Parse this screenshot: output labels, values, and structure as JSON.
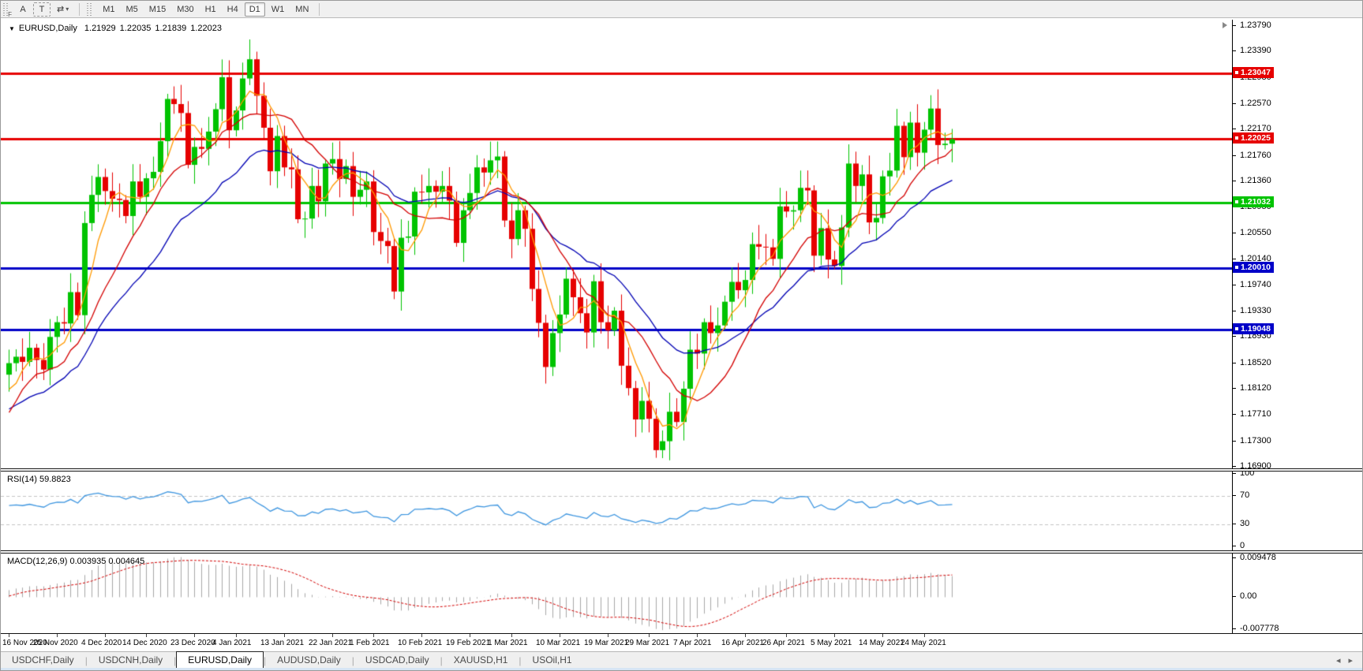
{
  "toolbar": {
    "grip_letter": "F",
    "buttons": [
      {
        "name": "cursor-button",
        "label": "A"
      },
      {
        "name": "text-button",
        "label": "T",
        "boxed": true
      }
    ],
    "symbols_icon": "⇄",
    "dropdown_caret": "▾",
    "timeframes": [
      "M1",
      "M5",
      "M15",
      "M30",
      "H1",
      "H4",
      "D1",
      "W1",
      "MN"
    ],
    "active_timeframe": "D1"
  },
  "chart_header": {
    "dropdown_icon": "▼",
    "symbol_label": "EURUSD,Daily",
    "open": "1.21929",
    "high": "1.22035",
    "low": "1.21839",
    "close": "1.22023"
  },
  "price_axis": {
    "ticks": [
      "1.23790",
      "1.23390",
      "1.22980",
      "1.22570",
      "1.22170",
      "1.21760",
      "1.21360",
      "1.20950",
      "1.20550",
      "1.20140",
      "1.19740",
      "1.19330",
      "1.18930",
      "1.18520",
      "1.18120",
      "1.17710",
      "1.17300",
      "1.16900"
    ]
  },
  "rsi_panel": {
    "label": "RSI(14) 59.8823",
    "ticks": [
      "100",
      "70",
      "30",
      "0"
    ],
    "dashed_levels": [
      70,
      30
    ]
  },
  "macd_panel": {
    "label": "MACD(12,26,9) 0.003935 0.004645",
    "ticks": [
      "0.009478",
      "0.00",
      "-0.007778"
    ]
  },
  "date_axis": {
    "ticks": [
      {
        "label": "16 Nov 2020",
        "index": 0
      },
      {
        "label": "25 Nov 2020",
        "index": 7
      },
      {
        "label": "4 Dec 2020",
        "index": 14
      },
      {
        "label": "14 Dec 2020",
        "index": 20
      },
      {
        "label": "23 Dec 2020",
        "index": 27
      },
      {
        "label": "4 Jan 2021",
        "index": 33
      },
      {
        "label": "13 Jan 2021",
        "index": 40
      },
      {
        "label": "22 Jan 2021",
        "index": 47
      },
      {
        "label": "1 Feb 2021",
        "index": 53
      },
      {
        "label": "10 Feb 2021",
        "index": 60
      },
      {
        "label": "19 Feb 2021",
        "index": 67
      },
      {
        "label": "1 Mar 2021",
        "index": 73
      },
      {
        "label": "10 Mar 2021",
        "index": 80
      },
      {
        "label": "19 Mar 2021",
        "index": 87
      },
      {
        "label": "29 Mar 2021",
        "index": 93
      },
      {
        "label": "7 Apr 2021",
        "index": 100
      },
      {
        "label": "16 Apr 2021",
        "index": 107
      },
      {
        "label": "26 Apr 2021",
        "index": 113
      },
      {
        "label": "5 May 2021",
        "index": 120
      },
      {
        "label": "14 May 2021",
        "index": 127
      },
      {
        "label": "24 May 2021",
        "index": 133
      }
    ]
  },
  "tabs": {
    "items": [
      "USDCHF,Daily",
      "USDCNH,Daily",
      "EURUSD,Daily",
      "AUDUSD,Daily",
      "USDCAD,Daily",
      "XAUUSD,H1",
      "USOil,H1"
    ],
    "active": "EURUSD,Daily",
    "scroll_left": "◂",
    "scroll_right": "▸"
  },
  "colors": {
    "bull": "#00C300",
    "bear": "#E60000",
    "level_red": "#E60000",
    "level_green": "#00C300",
    "level_blue": "#0000C8",
    "ma_fast": "#FF9900",
    "ma_mid": "#D40000",
    "ma_slow": "#0000B4",
    "rsi_line": "#3E96E0",
    "macd_hist": "#A8A8A8",
    "macd_signal": "#D40000",
    "tag_text": "#FFFFFF"
  },
  "chart_data": {
    "type": "candlestick",
    "symbol": "EURUSD",
    "timeframe": "Daily",
    "title": "EURUSD,Daily 1.21929 1.22035 1.21839 1.22023",
    "current_bar": {
      "open": 1.21929,
      "high": 1.22035,
      "low": 1.21839,
      "close": 1.22023
    },
    "x_range": [
      "16 Nov 2020",
      "28 May 2021"
    ],
    "y_range": [
      1.169,
      1.2379
    ],
    "warmup_closes": [
      1.1772,
      1.181,
      1.1749,
      1.1748,
      1.1671,
      1.1647,
      1.1641,
      1.1718,
      1.1723,
      1.1813,
      1.1826,
      1.1877,
      1.1814,
      1.1752,
      1.1803,
      1.1834
    ],
    "closes": [
      1.1852,
      1.1862,
      1.1854,
      1.1876,
      1.1857,
      1.1842,
      1.1893,
      1.1916,
      1.1914,
      1.1963,
      1.1927,
      1.2071,
      1.2115,
      1.2143,
      1.2121,
      1.2109,
      1.2107,
      1.2082,
      1.2136,
      1.2112,
      1.2141,
      1.2151,
      1.2199,
      1.2265,
      1.2257,
      1.2243,
      1.2162,
      1.219,
      1.2187,
      1.2214,
      1.2249,
      1.2299,
      1.2216,
      1.2247,
      1.2297,
      1.2327,
      1.227,
      1.222,
      1.2152,
      1.2207,
      1.2158,
      1.2155,
      1.2077,
      1.2078,
      1.2129,
      1.2105,
      1.2164,
      1.2171,
      1.214,
      1.216,
      1.2112,
      1.2123,
      1.2136,
      1.2057,
      1.2043,
      1.2035,
      1.1964,
      1.2048,
      1.205,
      1.212,
      1.2119,
      1.2129,
      1.212,
      1.2129,
      1.2106,
      1.204,
      1.2091,
      1.2118,
      1.2158,
      1.215,
      1.2169,
      1.2175,
      1.2075,
      1.2046,
      1.2091,
      1.2062,
      1.1968,
      1.1915,
      1.1846,
      1.1899,
      1.1928,
      1.1984,
      1.1955,
      1.193,
      1.19,
      1.198,
      1.1916,
      1.1903,
      1.1934,
      1.1848,
      1.1813,
      1.1764,
      1.1793,
      1.1765,
      1.1716,
      1.173,
      1.1776,
      1.176,
      1.1812,
      1.1873,
      1.1867,
      1.1916,
      1.1899,
      1.1911,
      1.1948,
      1.1979,
      1.1966,
      1.1982,
      1.2038,
      1.2034,
      1.2033,
      1.2015,
      1.2097,
      1.2089,
      1.2091,
      1.2126,
      1.2122,
      1.202,
      1.2063,
      1.2014,
      1.2004,
      1.2064,
      1.2164,
      1.2129,
      1.2147,
      1.2072,
      1.2079,
      1.2144,
      1.2153,
      1.2223,
      1.2174,
      1.2228,
      1.2181,
      1.2217,
      1.225,
      1.2193,
      1.2195,
      1.2202
    ],
    "wick_overrides": {
      "23": {
        "high": 1.2273
      },
      "35": {
        "high": 1.2358
      },
      "56": {
        "low": 1.1952
      },
      "94": {
        "low": 1.1704
      },
      "131": {
        "high": 1.2245
      }
    },
    "levels": [
      {
        "price": 1.23047,
        "tag": "1.23047",
        "color": "#E60000"
      },
      {
        "price": 1.22025,
        "tag": "1.22025",
        "color": "#E60000"
      },
      {
        "price": 1.21032,
        "tag": "1.21032",
        "color": "#00C300"
      },
      {
        "price": 1.2001,
        "tag": "1.20010",
        "color": "#0000C8"
      },
      {
        "price": 1.19048,
        "tag": "1.19048",
        "color": "#0000C8"
      }
    ],
    "moving_averages": [
      {
        "period": 5,
        "method": "sma",
        "color": "#FF9900"
      },
      {
        "period": 12,
        "method": "sma",
        "color": "#D40000"
      },
      {
        "period": 24,
        "method": "ema",
        "color": "#0000B4"
      }
    ],
    "rsi": {
      "period": 14,
      "last_value": 59.8823,
      "scale": [
        0,
        100
      ],
      "dashed_levels": [
        70,
        30
      ]
    },
    "macd": {
      "fast": 12,
      "slow": 26,
      "signal": 9,
      "last_macd": 0.003935,
      "last_signal": 0.004645,
      "axis_max": 0.009478,
      "axis_min": -0.007778
    }
  }
}
